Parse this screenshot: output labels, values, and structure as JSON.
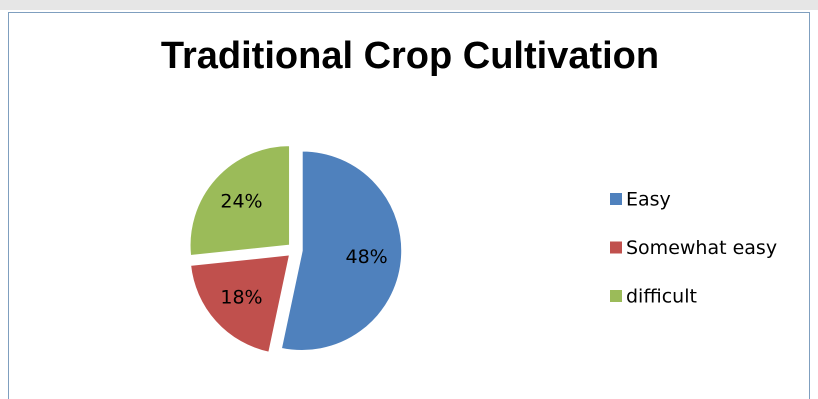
{
  "chart_data": {
    "type": "pie",
    "title": "Traditional Crop Cultivation",
    "categories": [
      "Easy",
      "Somewhat easy",
      "difficult"
    ],
    "values": [
      48,
      18,
      24
    ],
    "value_labels": [
      "48%",
      "18%",
      "24%"
    ],
    "colors": [
      "#4f81bd",
      "#c0504d",
      "#9bbb59"
    ],
    "legend": "right"
  }
}
